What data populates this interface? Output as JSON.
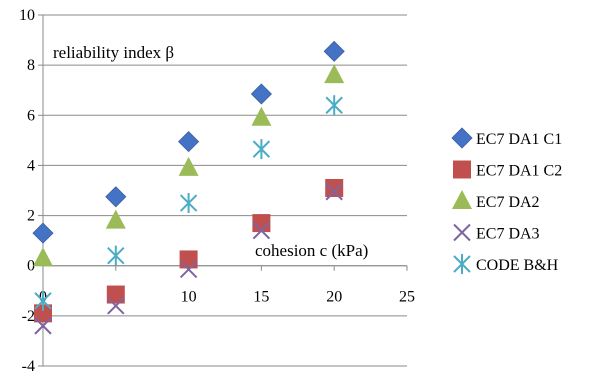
{
  "chart_data": {
    "type": "scatter",
    "title": "",
    "ylabel": "reliability index β",
    "xlabel": "cohesion c (kPa)",
    "xlim": [
      0,
      25
    ],
    "ylim": [
      -4,
      10
    ],
    "x_ticks": [
      "0",
      "5",
      "10",
      "15",
      "20",
      "25"
    ],
    "y_ticks": [
      "-4",
      "-2",
      "0",
      "2",
      "4",
      "6",
      "8",
      "10"
    ],
    "grid": "horizontal",
    "legend_position": "right",
    "series": [
      {
        "name": "EC7 DA1 C1",
        "marker": "diamond",
        "color": "#4472C4",
        "x": [
          0,
          5,
          10,
          15,
          20
        ],
        "y": [
          1.3,
          2.75,
          4.95,
          6.85,
          8.55
        ]
      },
      {
        "name": "EC7 DA1 C2",
        "marker": "square",
        "color": "#C0504D",
        "x": [
          0,
          5,
          10,
          15,
          20
        ],
        "y": [
          -1.9,
          -1.15,
          0.25,
          1.7,
          3.1
        ]
      },
      {
        "name": "EC7 DA2",
        "marker": "triangle",
        "color": "#9BBB59",
        "x": [
          0,
          5,
          10,
          15,
          20
        ],
        "y": [
          0.3,
          1.8,
          3.9,
          5.9,
          7.6
        ]
      },
      {
        "name": "EC7 DA3",
        "marker": "x",
        "color": "#8064A2",
        "x": [
          0,
          5,
          10,
          15,
          20
        ],
        "y": [
          -2.4,
          -1.6,
          -0.15,
          1.4,
          2.95
        ]
      },
      {
        "name": "CODE B&H",
        "marker": "asterisk",
        "color": "#4BACC6",
        "x": [
          0,
          5,
          10,
          15,
          20
        ],
        "y": [
          -1.4,
          0.4,
          2.5,
          4.65,
          6.4
        ]
      }
    ]
  }
}
